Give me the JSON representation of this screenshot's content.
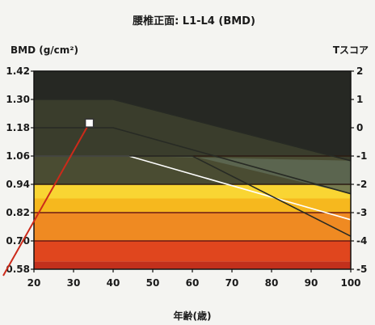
{
  "chart_data": {
    "type": "area",
    "title": "腰椎正面: L1-L4 (BMD)",
    "ylabel_left": "BMD (g/cm²)",
    "ylabel_right": "Tスコア",
    "xlabel": "年齢(歳)",
    "x_ticks": [
      20,
      30,
      40,
      50,
      60,
      70,
      80,
      90,
      100
    ],
    "y_ticks": [
      0.58,
      0.7,
      0.82,
      0.94,
      1.06,
      1.18,
      1.3,
      1.42
    ],
    "y_tick_labels": [
      "0.58",
      "0.70",
      "0.82",
      "0.94",
      "1.06",
      "1.18",
      "1.30",
      "1.42"
    ],
    "t_ticks": [
      -5,
      -4,
      -3,
      -2,
      -1,
      0,
      1,
      2
    ],
    "xlim": [
      20,
      100
    ],
    "ylim": [
      0.58,
      1.42
    ],
    "grid": false,
    "bands": [
      {
        "from": 0.58,
        "to": 0.613,
        "color": "#c2301c"
      },
      {
        "from": 0.613,
        "to": 0.7,
        "color": "#e0461e"
      },
      {
        "from": 0.7,
        "to": 0.82,
        "color": "#ef8a22"
      },
      {
        "from": 0.82,
        "to": 0.88,
        "color": "#f6b81e"
      },
      {
        "from": 0.88,
        "to": 0.94,
        "color": "#f9d533"
      },
      {
        "from": 0.94,
        "to": 1.06,
        "color": "#4a4c32"
      },
      {
        "from": 1.06,
        "to": 1.42,
        "color": "#262823"
      }
    ],
    "series": [
      {
        "name": "",
        "color": "#272a24",
        "values": [
          [
            20,
            1.3
          ],
          [
            40,
            1.3
          ],
          [
            100,
            1.04
          ]
        ]
      },
      {
        "name": "",
        "color": "#272a24",
        "values": [
          [
            20,
            1.18
          ],
          [
            40,
            1.18
          ],
          [
            100,
            0.9
          ]
        ]
      },
      {
        "name": "",
        "color": "#272a24",
        "values": [
          [
            20,
            1.06
          ],
          [
            44,
            1.06
          ],
          [
            100,
            0.79
          ]
        ]
      },
      {
        "name": "",
        "color": "#272a24",
        "values": [
          [
            20,
            1.06
          ],
          [
            60,
            1.06
          ],
          [
            100,
            0.72
          ]
        ]
      }
    ],
    "shaded_wedge": {
      "color": "#5e6a55",
      "values": [
        [
          44,
          1.06
        ],
        [
          60,
          1.06
        ],
        [
          100,
          0.9
        ],
        [
          100,
          1.04
        ]
      ]
    },
    "patient_point": {
      "x": 34,
      "y": 1.2,
      "color": "#ffffff",
      "stroke": "#333333"
    },
    "leader_line_color": "#cc2a1a",
    "line_colors": {
      "white": "#ffffff",
      "dark": "#2a1a12",
      "wine": "#6b1a14"
    }
  }
}
